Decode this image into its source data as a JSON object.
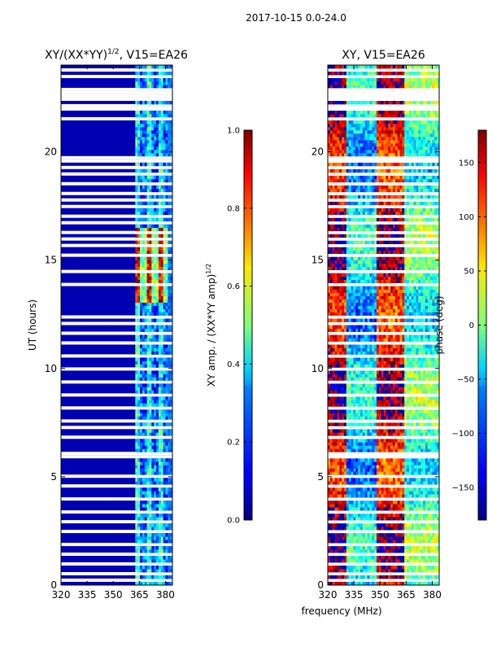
{
  "figure": {
    "suptitle": "2017-10-15 0.0-24.0",
    "shared_xlabel": "frequency (MHz)"
  },
  "chart_data": [
    {
      "type": "heatmap",
      "title_base": "XY/(XX*YY)",
      "title_exp": "1/2",
      "title_suffix": ", V15=EA26",
      "xlabel": "",
      "ylabel": "UT (hours)",
      "xlim": [
        320,
        384
      ],
      "ylim": [
        0,
        24
      ],
      "xticks": [
        320,
        335,
        350,
        365,
        380
      ],
      "yticks": [
        0,
        5,
        10,
        15,
        20
      ],
      "colorbar": {
        "label_base": "XY amp. / (XX*YY amp)",
        "label_exp": "1/2",
        "range": [
          0.0,
          1.0
        ],
        "ticks": [
          "0.0",
          "0.2",
          "0.4",
          "0.6",
          "0.8",
          "1.0"
        ],
        "colormap": "jet"
      },
      "value_summary": {
        "background_below_362MHz": 0.05,
        "band_362_381MHz_typical": 0.4,
        "band_362_381MHz_peak_13_to_16h": 0.9
      }
    },
    {
      "type": "heatmap",
      "title": "XY, V15=EA26",
      "xlabel": "frequency (MHz)",
      "ylabel": "",
      "xlim": [
        320,
        384
      ],
      "ylim": [
        0,
        24
      ],
      "xticks": [
        320,
        335,
        350,
        365,
        380
      ],
      "yticks": [
        0,
        5,
        10,
        15,
        20
      ],
      "colorbar": {
        "label": "phase (deg)",
        "range": [
          -180,
          180
        ],
        "ticks": [
          "−150",
          "−100",
          "−50",
          "0",
          "50",
          "100",
          "150"
        ],
        "colormap": "jet"
      },
      "value_summary": {
        "phase_320_330MHz_deg": 150,
        "phase_330_345MHz_deg": -60,
        "phase_350_362MHz_deg": 140,
        "phase_365_384MHz_deg": -20
      }
    }
  ],
  "colors": {
    "background": "#ffffff",
    "flagged_rows": "#ffffff",
    "axis": "#000000"
  }
}
